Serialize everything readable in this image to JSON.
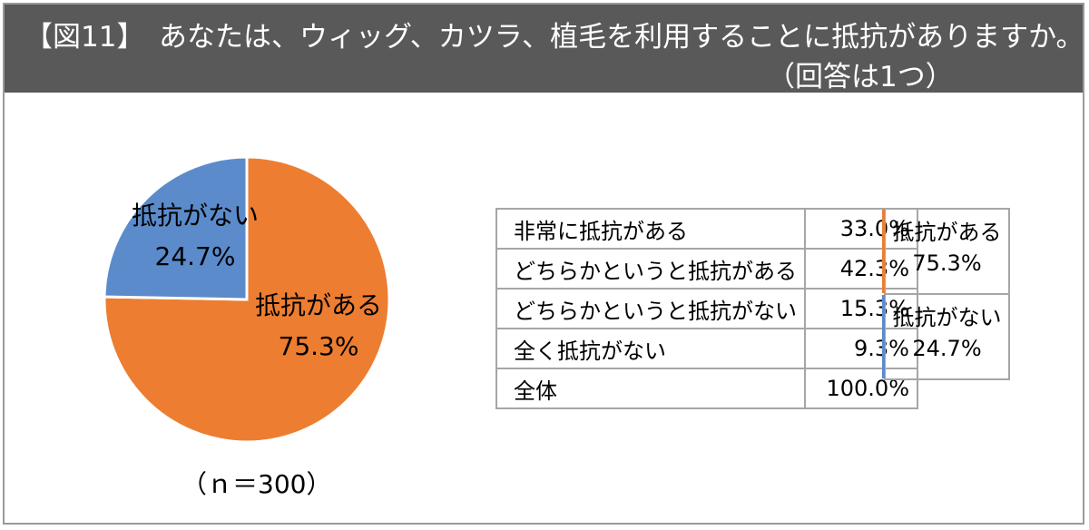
{
  "header": {
    "title": "【図11】　あなたは、ウィッグ、カツラ、植毛を利用することに抵抗がありますか。",
    "subtitle": "（回答は1つ）"
  },
  "chart_data": {
    "type": "pie",
    "slices": [
      {
        "label": "抵抗がある",
        "value": 75.3,
        "value_text": "75.3%",
        "color": "#ED7D31"
      },
      {
        "label": "抵抗がない",
        "value": 24.7,
        "value_text": "24.7%",
        "color": "#5B8BCB"
      }
    ],
    "sample_size": "（ｎ＝300）"
  },
  "breakdown_table": {
    "rows": [
      {
        "label": "非常に抵抗がある",
        "value": "33.0%"
      },
      {
        "label": "どちらかというと抵抗がある",
        "value": "42.3%"
      },
      {
        "label": "どちらかというと抵抗がない",
        "value": "15.3%"
      },
      {
        "label": "全く抵抗がない",
        "value": "9.3%"
      },
      {
        "label": "全体",
        "value": "100.0%"
      }
    ],
    "groups": [
      {
        "label": "抵抗がある",
        "value": "75.3%",
        "color": "#ED7D31"
      },
      {
        "label": "抵抗がない",
        "value": "24.7%",
        "color": "#5B8BCB"
      }
    ]
  }
}
